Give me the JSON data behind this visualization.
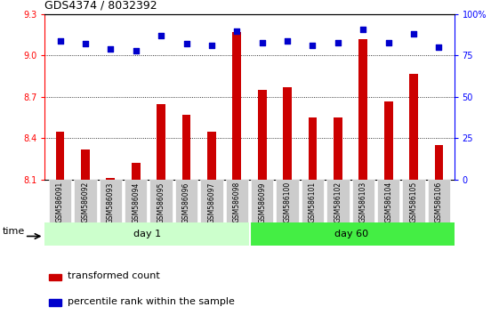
{
  "title": "GDS4374 / 8032392",
  "samples": [
    "GSM586091",
    "GSM586092",
    "GSM586093",
    "GSM586094",
    "GSM586095",
    "GSM586096",
    "GSM586097",
    "GSM586098",
    "GSM586099",
    "GSM586100",
    "GSM586101",
    "GSM586102",
    "GSM586103",
    "GSM586104",
    "GSM586105",
    "GSM586106"
  ],
  "red_values": [
    8.45,
    8.32,
    8.11,
    8.22,
    8.65,
    8.57,
    8.45,
    9.17,
    8.75,
    8.77,
    8.55,
    8.55,
    9.12,
    8.67,
    8.87,
    8.35
  ],
  "blue_values": [
    84,
    82,
    79,
    78,
    87,
    82,
    81,
    90,
    83,
    84,
    81,
    83,
    91,
    83,
    88,
    80
  ],
  "day1_samples": 8,
  "day60_samples": 8,
  "ymin": 8.1,
  "ymax": 9.3,
  "y2min": 0,
  "y2max": 100,
  "yticks": [
    8.1,
    8.4,
    8.7,
    9.0,
    9.3
  ],
  "y2ticks": [
    0,
    25,
    50,
    75,
    100
  ],
  "bar_color": "#cc0000",
  "dot_color": "#0000cc",
  "day1_light_color": "#ccffcc",
  "day60_bright_color": "#44ee44",
  "xlabel_time": "time",
  "day1_label": "day 1",
  "day60_label": "day 60",
  "legend_red": "transformed count",
  "legend_blue": "percentile rank within the sample",
  "tick_bg": "#cccccc",
  "grid_dotted_values": [
    8.4,
    8.7,
    9.0
  ],
  "bar_width": 0.35
}
